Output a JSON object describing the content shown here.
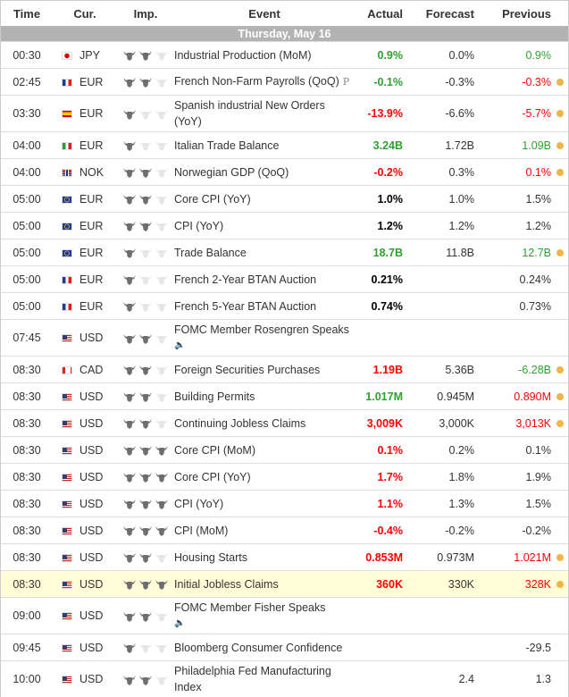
{
  "headers": {
    "time": "Time",
    "cur": "Cur.",
    "imp": "Imp.",
    "event": "Event",
    "actual": "Actual",
    "forecast": "Forecast",
    "previous": "Previous"
  },
  "date": "Thursday, May 16",
  "colors": {
    "green": "#2fa12f",
    "red": "#ff0000",
    "black": "#000000",
    "dot": "#f0b545",
    "bull_on": "#6e6e6e",
    "bull_off": "#e6e6e6"
  },
  "rows": [
    {
      "time": "00:30",
      "cur": "JPY",
      "flag": "jp",
      "imp": 2,
      "event": "Industrial Production (MoM)",
      "actual": "0.9%",
      "ac": "green",
      "forecast": "0.0%",
      "previous": "0.9%",
      "pc": "green",
      "dot": false
    },
    {
      "time": "02:45",
      "cur": "EUR",
      "flag": "fr",
      "imp": 2,
      "event": "French Non-Farm Payrolls (QoQ)",
      "badge": "P",
      "actual": "-0.1%",
      "ac": "green",
      "forecast": "-0.3%",
      "previous": "-0.3%",
      "pc": "red",
      "dot": true
    },
    {
      "time": "03:30",
      "cur": "EUR",
      "flag": "es",
      "imp": 1,
      "event": "Spanish industrial New Orders (YoY)",
      "actual": "-13.9%",
      "ac": "red",
      "forecast": "-6.6%",
      "previous": "-5.7%",
      "pc": "red",
      "dot": true
    },
    {
      "time": "04:00",
      "cur": "EUR",
      "flag": "it",
      "imp": 1,
      "event": "Italian Trade Balance",
      "actual": "3.24B",
      "ac": "green",
      "forecast": "1.72B",
      "previous": "1.09B",
      "pc": "green",
      "dot": true
    },
    {
      "time": "04:00",
      "cur": "NOK",
      "flag": "no",
      "imp": 2,
      "event": "Norwegian GDP (QoQ)",
      "actual": "-0.2%",
      "ac": "red",
      "forecast": "0.3%",
      "previous": "0.1%",
      "pc": "red",
      "dot": true
    },
    {
      "time": "05:00",
      "cur": "EUR",
      "flag": "eu",
      "imp": 2,
      "event": "Core CPI (YoY)",
      "actual": "1.0%",
      "ac": "black",
      "forecast": "1.0%",
      "previous": "1.5%",
      "pc": "",
      "dot": false
    },
    {
      "time": "05:00",
      "cur": "EUR",
      "flag": "eu",
      "imp": 2,
      "event": "CPI (YoY)",
      "actual": "1.2%",
      "ac": "black",
      "forecast": "1.2%",
      "previous": "1.2%",
      "pc": "",
      "dot": false
    },
    {
      "time": "05:00",
      "cur": "EUR",
      "flag": "eu",
      "imp": 1,
      "event": "Trade Balance",
      "actual": "18.7B",
      "ac": "green",
      "forecast": "11.8B",
      "previous": "12.7B",
      "pc": "green",
      "dot": true
    },
    {
      "time": "05:00",
      "cur": "EUR",
      "flag": "fr",
      "imp": 1,
      "event": "French 2-Year BTAN Auction",
      "actual": "0.21%",
      "ac": "black",
      "forecast": "",
      "previous": "0.24%",
      "pc": "",
      "dot": false
    },
    {
      "time": "05:00",
      "cur": "EUR",
      "flag": "fr",
      "imp": 1,
      "event": "French 5-Year BTAN Auction",
      "actual": "0.74%",
      "ac": "black",
      "forecast": "",
      "previous": "0.73%",
      "pc": "",
      "dot": false
    },
    {
      "time": "07:45",
      "cur": "USD",
      "flag": "us",
      "imp": 2,
      "event": "FOMC Member Rosengren Speaks",
      "speech": true,
      "actual": "",
      "ac": "",
      "forecast": "",
      "previous": "",
      "pc": "",
      "dot": false
    },
    {
      "time": "08:30",
      "cur": "CAD",
      "flag": "ca",
      "imp": 2,
      "event": "Foreign Securities Purchases",
      "actual": "1.19B",
      "ac": "red",
      "forecast": "5.36B",
      "previous": "-6.28B",
      "pc": "green",
      "dot": true
    },
    {
      "time": "08:30",
      "cur": "USD",
      "flag": "us",
      "imp": 2,
      "event": "Building Permits",
      "actual": "1.017M",
      "ac": "green",
      "forecast": "0.945M",
      "previous": "0.890M",
      "pc": "red",
      "dot": true
    },
    {
      "time": "08:30",
      "cur": "USD",
      "flag": "us",
      "imp": 2,
      "event": "Continuing Jobless Claims",
      "actual": "3,009K",
      "ac": "red",
      "forecast": "3,000K",
      "previous": "3,013K",
      "pc": "red",
      "dot": true
    },
    {
      "time": "08:30",
      "cur": "USD",
      "flag": "us",
      "imp": 3,
      "event": "Core CPI (MoM)",
      "actual": "0.1%",
      "ac": "red",
      "forecast": "0.2%",
      "previous": "0.1%",
      "pc": "",
      "dot": false
    },
    {
      "time": "08:30",
      "cur": "USD",
      "flag": "us",
      "imp": 3,
      "event": "Core CPI (YoY)",
      "actual": "1.7%",
      "ac": "red",
      "forecast": "1.8%",
      "previous": "1.9%",
      "pc": "",
      "dot": false
    },
    {
      "time": "08:30",
      "cur": "USD",
      "flag": "us",
      "imp": 3,
      "event": "CPI (YoY)",
      "actual": "1.1%",
      "ac": "red",
      "forecast": "1.3%",
      "previous": "1.5%",
      "pc": "",
      "dot": false
    },
    {
      "time": "08:30",
      "cur": "USD",
      "flag": "us",
      "imp": 3,
      "event": "CPI (MoM)",
      "actual": "-0.4%",
      "ac": "red",
      "forecast": "-0.2%",
      "previous": "-0.2%",
      "pc": "",
      "dot": false
    },
    {
      "time": "08:30",
      "cur": "USD",
      "flag": "us",
      "imp": 2,
      "event": "Housing Starts",
      "actual": "0.853M",
      "ac": "red",
      "forecast": "0.973M",
      "previous": "1.021M",
      "pc": "red",
      "dot": true
    },
    {
      "time": "08:30",
      "cur": "USD",
      "flag": "us",
      "imp": 3,
      "event": "Initial Jobless Claims",
      "actual": "360K",
      "ac": "red",
      "forecast": "330K",
      "previous": "328K",
      "pc": "red",
      "dot": true,
      "highlight": true
    },
    {
      "time": "09:00",
      "cur": "USD",
      "flag": "us",
      "imp": 2,
      "event": "FOMC Member Fisher Speaks",
      "speech": true,
      "actual": "",
      "ac": "",
      "forecast": "",
      "previous": "",
      "pc": "",
      "dot": false
    },
    {
      "time": "09:45",
      "cur": "USD",
      "flag": "us",
      "imp": 1,
      "event": "Bloomberg Consumer Confidence",
      "actual": "",
      "ac": "",
      "forecast": "",
      "previous": "-29.5",
      "pc": "",
      "dot": false
    },
    {
      "time": "10:00",
      "cur": "USD",
      "flag": "us",
      "imp": 2,
      "event": "Philadelphia Fed Manufacturing Index",
      "actual": "",
      "ac": "",
      "forecast": "2.4",
      "previous": "1.3",
      "pc": "",
      "dot": false
    }
  ]
}
